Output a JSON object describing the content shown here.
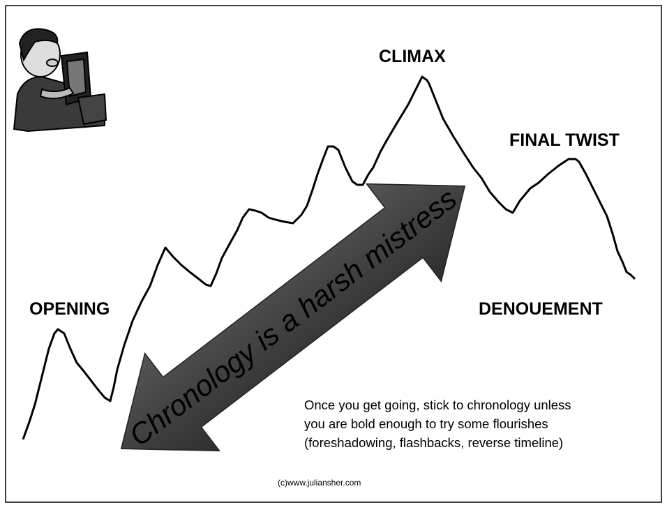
{
  "labels": {
    "opening": "OPENING",
    "climax": "CLIMAX",
    "final_twist": "FINAL TWIST",
    "denouement": "DENOUEMENT"
  },
  "arrow_text": "Chronology is a harsh mistress",
  "note": [
    "Once you get going, stick to chronology unless",
    "you are bold enough to try some flourishes",
    "(foreshadowing, flashbacks, reverse timeline)"
  ],
  "credit": "(c)www.juliansher.com"
}
